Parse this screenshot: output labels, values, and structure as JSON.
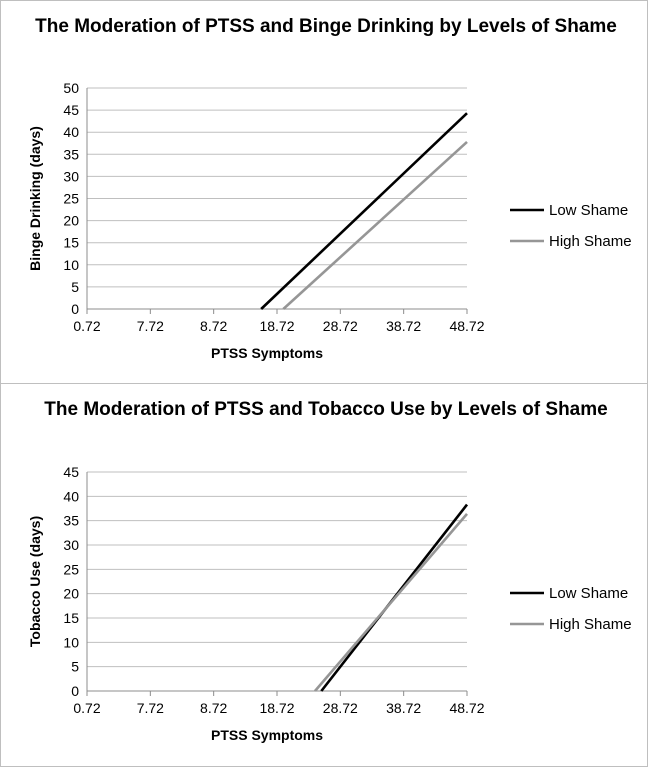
{
  "chart_data": [
    {
      "type": "line",
      "title": "The Moderation of PTSS and Binge Drinking by Levels of Shame",
      "xlabel": "PTSS Symptoms",
      "ylabel": "Binge Drinking (days)",
      "categories": [
        "0.72",
        "7.72",
        "8.72",
        "18.72",
        "28.72",
        "38.72",
        "48.72"
      ],
      "ylim": [
        0,
        50
      ],
      "yticks": [
        "0",
        "5",
        "10",
        "15",
        "20",
        "25",
        "30",
        "35",
        "40",
        "45",
        "50"
      ],
      "grid": true,
      "legend": "right",
      "series": [
        {
          "name": "Low Shame",
          "color": "#000000",
          "points": [
            [
              2.75,
              0
            ],
            [
              6.0,
              44.3
            ]
          ]
        },
        {
          "name": "High Shame",
          "color": "#969696",
          "points": [
            [
              3.1,
              0
            ],
            [
              6.0,
              37.8
            ]
          ]
        }
      ]
    },
    {
      "type": "line",
      "title": "The Moderation of PTSS and Tobacco Use by Levels of Shame",
      "xlabel": "PTSS Symptoms",
      "ylabel": "Tobacco Use (days)",
      "categories": [
        "0.72",
        "7.72",
        "8.72",
        "18.72",
        "28.72",
        "38.72",
        "48.72"
      ],
      "ylim": [
        0,
        45
      ],
      "yticks": [
        "0",
        "5",
        "10",
        "15",
        "20",
        "25",
        "30",
        "35",
        "40",
        "45"
      ],
      "grid": true,
      "legend": "right",
      "series": [
        {
          "name": "Low Shame",
          "color": "#000000",
          "points": [
            [
              3.7,
              0
            ],
            [
              6.0,
              38.3
            ]
          ]
        },
        {
          "name": "High Shame",
          "color": "#969696",
          "points": [
            [
              3.6,
              0
            ],
            [
              6.0,
              36.4
            ]
          ]
        }
      ]
    }
  ]
}
